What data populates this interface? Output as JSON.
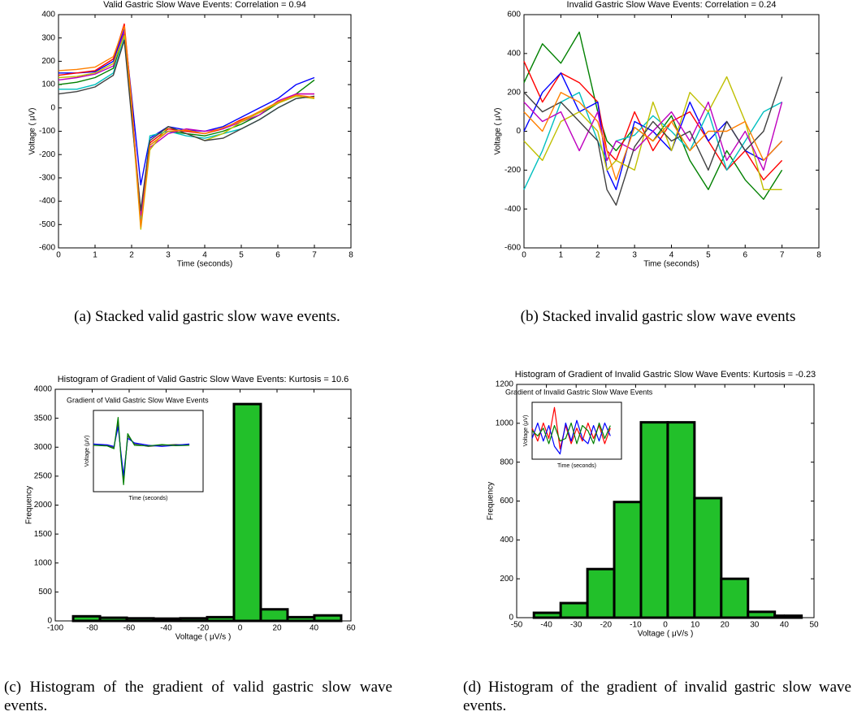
{
  "chart_data": [
    {
      "type": "line",
      "title": "Valid Gastric Slow Wave Events: Correlation = 0.94",
      "xlabel": "Time (seconds)",
      "ylabel": "Voltage ( μV)",
      "caption": "(a) Stacked valid gastric slow wave events.",
      "xlim": [
        0,
        8
      ],
      "xticks": [
        0,
        1,
        2,
        3,
        4,
        5,
        6,
        7,
        8
      ],
      "ylim": [
        -600,
        400
      ],
      "yticks": [
        -600,
        -500,
        -400,
        -300,
        -200,
        -100,
        0,
        100,
        200,
        300,
        400
      ],
      "x": [
        0,
        0.5,
        1,
        1.5,
        1.8,
        2,
        2.25,
        2.5,
        3,
        3.5,
        4,
        4.5,
        5,
        5.5,
        6,
        6.5,
        7
      ],
      "series": [
        {
          "color": "#0000ff",
          "values": [
            150,
            150,
            155,
            200,
            340,
            50,
            -330,
            -130,
            -80,
            -95,
            -100,
            -80,
            -40,
            0,
            40,
            100,
            130
          ]
        },
        {
          "color": "#008000",
          "values": [
            100,
            110,
            130,
            170,
            320,
            0,
            -470,
            -160,
            -100,
            -110,
            -120,
            -100,
            -70,
            -30,
            20,
            60,
            120
          ]
        },
        {
          "color": "#ff0000",
          "values": [
            140,
            150,
            160,
            210,
            360,
            30,
            -500,
            -150,
            -90,
            -100,
            -110,
            -90,
            -50,
            -20,
            20,
            60,
            60
          ]
        },
        {
          "color": "#00bfbf",
          "values": [
            80,
            80,
            100,
            150,
            300,
            -20,
            -480,
            -120,
            -100,
            -120,
            -130,
            -110,
            -90,
            -50,
            0,
            40,
            50
          ]
        },
        {
          "color": "#bf00bf",
          "values": [
            120,
            130,
            145,
            180,
            330,
            10,
            -460,
            -170,
            -110,
            -90,
            -100,
            -90,
            -60,
            -30,
            30,
            60,
            60
          ]
        },
        {
          "color": "#bfbf00",
          "values": [
            130,
            135,
            150,
            190,
            310,
            -10,
            -520,
            -180,
            -80,
            -110,
            -140,
            -110,
            -60,
            -20,
            20,
            50,
            40
          ]
        },
        {
          "color": "#404040",
          "values": [
            60,
            70,
            90,
            140,
            290,
            -40,
            -440,
            -140,
            -80,
            -110,
            -140,
            -130,
            -90,
            -50,
            0,
            40,
            50
          ]
        },
        {
          "color": "#ff8000",
          "values": [
            160,
            165,
            175,
            220,
            350,
            20,
            -510,
            -160,
            -100,
            -95,
            -110,
            -85,
            -55,
            -15,
            25,
            55,
            45
          ]
        }
      ]
    },
    {
      "type": "line",
      "title": "Invalid Gastric Slow Wave Events: Correlation = 0.24",
      "xlabel": "Time (seconds)",
      "ylabel": "Voltage ( μV)",
      "caption": "(b) Stacked invalid gastric slow wave events",
      "xlim": [
        0,
        8
      ],
      "xticks": [
        0,
        1,
        2,
        3,
        4,
        5,
        6,
        7,
        8
      ],
      "ylim": [
        -600,
        600
      ],
      "yticks": [
        -600,
        -400,
        -200,
        0,
        200,
        400,
        600
      ],
      "x": [
        0,
        0.5,
        1,
        1.5,
        2,
        2.25,
        2.5,
        3,
        3.5,
        4,
        4.5,
        5,
        5.5,
        6,
        6.5,
        7
      ],
      "series": [
        {
          "color": "#008000",
          "values": [
            250,
            450,
            350,
            510,
            100,
            -50,
            -100,
            20,
            -50,
            80,
            -150,
            -300,
            -100,
            -250,
            -350,
            -200
          ]
        },
        {
          "color": "#ff0000",
          "values": [
            360,
            150,
            300,
            250,
            150,
            -100,
            -150,
            100,
            -100,
            50,
            100,
            -50,
            -200,
            -100,
            -250,
            -150
          ]
        },
        {
          "color": "#0000ff",
          "values": [
            0,
            200,
            300,
            100,
            150,
            -200,
            -300,
            50,
            0,
            -100,
            150,
            -50,
            50,
            -100,
            -150,
            -50
          ]
        },
        {
          "color": "#00bfbf",
          "values": [
            -300,
            -100,
            150,
            200,
            -50,
            -150,
            -50,
            -20,
            80,
            0,
            -100,
            100,
            -200,
            -50,
            100,
            150
          ]
        },
        {
          "color": "#bfbf00",
          "values": [
            -50,
            -150,
            50,
            100,
            0,
            -200,
            -150,
            -200,
            150,
            -100,
            200,
            100,
            280,
            50,
            -300,
            -300
          ]
        },
        {
          "color": "#bf00bf",
          "values": [
            150,
            50,
            100,
            -100,
            100,
            -150,
            -50,
            -100,
            0,
            100,
            -50,
            150,
            -150,
            0,
            -200,
            150
          ]
        },
        {
          "color": "#404040",
          "values": [
            200,
            100,
            150,
            50,
            -50,
            -300,
            -380,
            -80,
            50,
            -50,
            0,
            -200,
            50,
            -100,
            0,
            280
          ]
        },
        {
          "color": "#ff8000",
          "values": [
            100,
            0,
            200,
            150,
            50,
            -100,
            -250,
            20,
            -50,
            50,
            -100,
            0,
            0,
            50,
            -150,
            -50
          ]
        }
      ]
    },
    {
      "type": "histogram",
      "title": "Histogram of Gradient of Valid Gastric Slow Wave Events: Kurtosis = 10.6",
      "xlabel": "Voltage ( μV/s )",
      "ylabel": "Frequency",
      "caption": "(c) Histogram of the gradient of valid gastric slow wave events.",
      "color": "#22c02a",
      "xlim": [
        -100,
        60
      ],
      "xticks": [
        -100,
        -80,
        -60,
        -40,
        -20,
        0,
        20,
        40,
        60
      ],
      "ylim": [
        0,
        4000
      ],
      "yticks": [
        0,
        500,
        1000,
        1500,
        2000,
        2500,
        3000,
        3500,
        4000
      ],
      "bins": [
        -90.3,
        -75.8,
        -61.3,
        -46.8,
        -32.3,
        -17.8,
        -3.3,
        11.2,
        25.7,
        40.2,
        54.7
      ],
      "values": [
        80,
        55,
        45,
        40,
        45,
        65,
        3745,
        200,
        65,
        95
      ],
      "inset": {
        "type": "line",
        "title": "Gradient of Valid Gastric Slow Wave Events",
        "xlabel": "Time (seconds)",
        "ylabel": "Voltage (μV)",
        "xlim": [
          0,
          8
        ],
        "ylim": [
          -200,
          150
        ],
        "x": [
          0,
          1,
          1.5,
          1.8,
          2,
          2.2,
          2.5,
          3,
          4,
          5,
          6,
          7
        ],
        "series": [
          {
            "color": "#404040",
            "values": [
              0,
              0,
              -10,
              100,
              -40,
              -150,
              40,
              5,
              -5,
              0,
              3,
              0
            ]
          },
          {
            "color": "#0000ff",
            "values": [
              5,
              2,
              -5,
              80,
              -30,
              -130,
              30,
              10,
              0,
              -5,
              0,
              5
            ]
          },
          {
            "color": "#008000",
            "values": [
              0,
              -3,
              -15,
              120,
              -50,
              -170,
              50,
              0,
              -3,
              3,
              -2,
              0
            ]
          }
        ]
      }
    },
    {
      "type": "histogram",
      "title": "Histogram of Gradient of Invalid Gastric Slow Wave Events: Kurtosis = -0.23",
      "xlabel": "Voltage ( μV/s )",
      "ylabel": "Frequency",
      "caption": "(d) Histogram of the gradient of invalid gastric slow wave events.",
      "color": "#22c02a",
      "xlim": [
        -50,
        50
      ],
      "xticks": [
        -50,
        -40,
        -30,
        -20,
        -10,
        0,
        10,
        20,
        30,
        40,
        50
      ],
      "ylim": [
        0,
        1200
      ],
      "yticks": [
        0,
        200,
        400,
        600,
        800,
        1000,
        1200
      ],
      "bins": [
        -44.2,
        -35.2,
        -26.2,
        -17.2,
        -8.2,
        0.8,
        9.8,
        18.8,
        27.8,
        36.8,
        45.8
      ],
      "values": [
        25,
        75,
        250,
        595,
        1005,
        1005,
        615,
        200,
        30,
        10
      ],
      "inset": {
        "type": "line",
        "title": "Gradient of Invalid Gastric Slow Wave Events",
        "xlabel": "Time (seconds)",
        "ylabel": "Voltage (μV)",
        "xlim": [
          0,
          8
        ],
        "ylim": [
          -100,
          120
        ],
        "x": [
          0,
          0.5,
          1,
          1.5,
          2,
          2.5,
          3,
          3.5,
          4,
          4.5,
          5,
          5.5,
          6,
          6.5,
          7
        ],
        "series": [
          {
            "color": "#ff0000",
            "values": [
              20,
              -30,
              40,
              -20,
              100,
              -60,
              30,
              -40,
              20,
              -30,
              40,
              -20,
              30,
              -40,
              20
            ]
          },
          {
            "color": "#0000ff",
            "values": [
              -20,
              40,
              -30,
              30,
              -50,
              -80,
              40,
              -30,
              50,
              -20,
              -40,
              30,
              -30,
              40,
              -10
            ]
          },
          {
            "color": "#008000",
            "values": [
              10,
              -10,
              20,
              -40,
              30,
              -30,
              -20,
              40,
              -40,
              30,
              10,
              -40,
              40,
              -20,
              30
            ]
          }
        ]
      }
    }
  ]
}
